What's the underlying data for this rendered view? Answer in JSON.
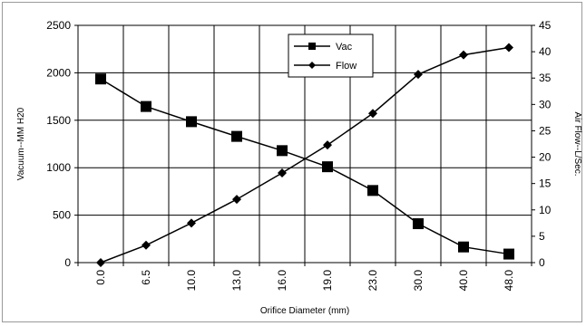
{
  "chart_data": {
    "type": "line",
    "xlabel": "Orifice Diameter (mm)",
    "ylabel": "Vacuum--MM H20",
    "y2label": "Air Flow--L/Sec.",
    "categories": [
      "0.0",
      "6.5",
      "10.0",
      "13.0",
      "16.0",
      "19.0",
      "23.0",
      "30.0",
      "40.0",
      "48.0"
    ],
    "ylim": [
      0,
      2500
    ],
    "yticks": [
      "0",
      "500",
      "1000",
      "1500",
      "2000",
      "2500"
    ],
    "y2lim": [
      0,
      45
    ],
    "y2ticks": [
      "0",
      "5",
      "10",
      "15",
      "20",
      "25",
      "30",
      "35",
      "40",
      "45"
    ],
    "grid": true,
    "legend_position": "top-center",
    "series": [
      {
        "name": "Vac",
        "axis": "left",
        "marker": "square",
        "color": "#000000",
        "values": [
          1935,
          1645,
          1485,
          1330,
          1180,
          1010,
          760,
          410,
          165,
          90
        ]
      },
      {
        "name": "Flow",
        "axis": "right",
        "marker": "diamond",
        "color": "#000000",
        "values": [
          0,
          3.3,
          7.5,
          12.0,
          17.0,
          22.3,
          28.3,
          35.7,
          39.4,
          40.8
        ]
      }
    ]
  }
}
